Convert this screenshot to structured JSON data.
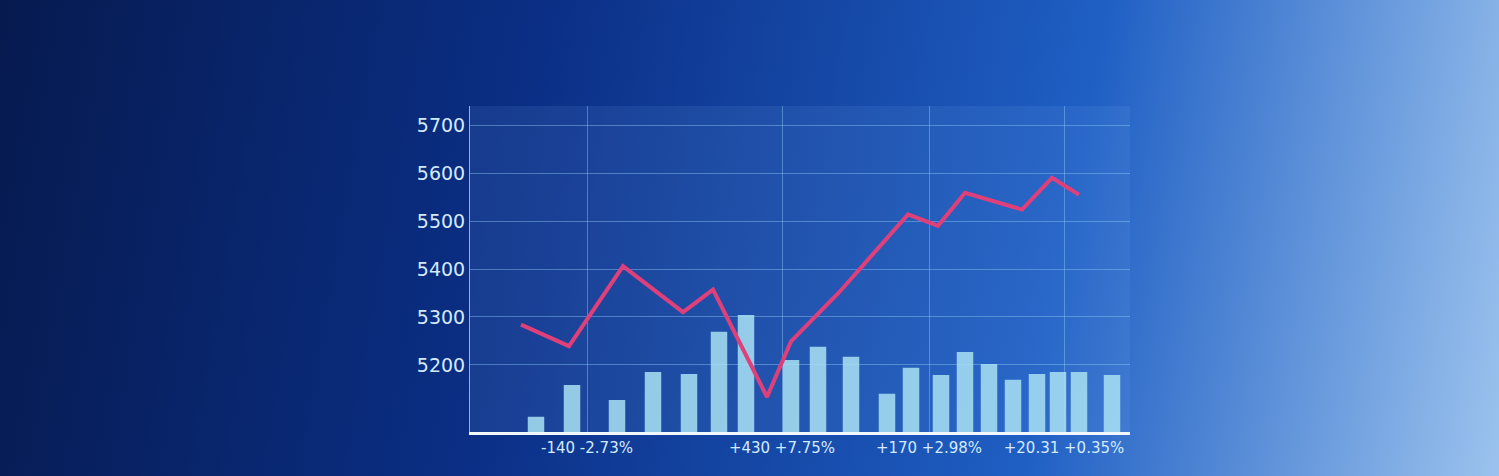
{
  "chart_data": {
    "type": "line",
    "grid": true,
    "xlim": [
      0,
      22
    ],
    "xticks": [
      {
        "value": 3.9,
        "label": "-140 -2.73%"
      },
      {
        "value": 10.4,
        "label": "+430 +7.75%"
      },
      {
        "value": 15.3,
        "label": "+170 +2.98%"
      },
      {
        "value": 19.8,
        "label": "+20.31 +0.35%"
      }
    ],
    "ylim": [
      5060,
      5740
    ],
    "yticks": [
      5200,
      5300,
      5400,
      5500,
      5600,
      5700
    ],
    "series": [
      {
        "type": "bar",
        "color": "#a9e2f3",
        "x": [
          2.2,
          3.4,
          4.9,
          6.1,
          7.3,
          8.3,
          9.2,
          10.7,
          11.6,
          12.7,
          13.9,
          14.7,
          15.7,
          16.5,
          17.3,
          18.1,
          18.9,
          19.6,
          20.3,
          21.4
        ],
        "values": [
          5092,
          5158,
          5127,
          5185,
          5181,
          5269,
          5304,
          5210,
          5238,
          5217,
          5140,
          5194,
          5179,
          5227,
          5202,
          5169,
          5181,
          5185,
          5185,
          5179
        ]
      },
      {
        "type": "line",
        "color": "#e0407a",
        "x": [
          1.7,
          3.3,
          5.1,
          7.1,
          8.1,
          9.9,
          10.7,
          12.3,
          14.6,
          15.6,
          16.5,
          18.4,
          19.4,
          20.3
        ],
        "values": [
          5284,
          5239,
          5406,
          5310,
          5357,
          5133,
          5249,
          5351,
          5514,
          5490,
          5559,
          5524,
          5590,
          5555
        ]
      }
    ]
  }
}
